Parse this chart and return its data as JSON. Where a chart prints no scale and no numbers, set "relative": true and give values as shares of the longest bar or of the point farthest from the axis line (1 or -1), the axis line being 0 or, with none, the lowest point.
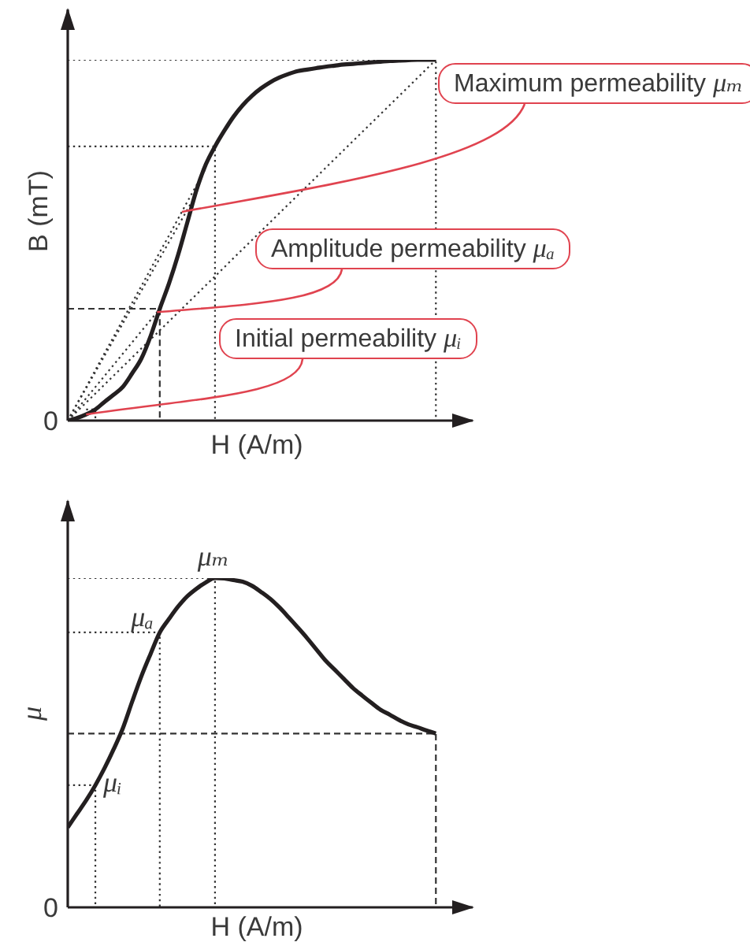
{
  "chart_data": [
    {
      "type": "line",
      "xlabel": "H (A/m)",
      "ylabel": "B (mT)",
      "relative": true,
      "marker": "none",
      "categories": [
        null,
        null,
        null,
        null,
        null,
        null,
        null,
        null,
        null,
        null,
        null,
        null,
        null,
        null,
        null,
        null,
        null,
        null,
        null,
        null,
        null,
        null,
        null,
        null,
        null,
        null,
        null,
        null,
        null,
        null,
        null,
        null,
        null,
        null,
        null,
        null,
        null,
        null,
        null,
        null,
        null,
        null,
        null,
        null,
        null
      ],
      "series": [
        {
          "type": "step",
          "color": "#333333",
          "line_style": "dotted",
          "values": [
            1,
            1,
            1,
            1,
            1,
            1,
            1,
            1,
            1,
            1,
            1,
            1,
            1,
            1,
            1,
            1,
            1,
            1,
            1,
            1,
            1,
            1,
            1,
            1,
            1,
            1,
            1,
            1,
            1,
            1,
            1,
            1,
            1,
            1,
            1,
            1,
            1,
            1,
            1,
            1,
            0,
            null,
            null,
            null,
            null
          ]
        },
        {
          "type": "step",
          "color": "#333333",
          "line_style": "dotted",
          "values": [
            0.76,
            0.76,
            0.76,
            0.76,
            0.76,
            0.76,
            0.76,
            0.76,
            0.76,
            0.76,
            0.76,
            0.76,
            0.76,
            0.76,
            0.76,
            0.76,
            0,
            null,
            null,
            null,
            null,
            null,
            null,
            null,
            null,
            null,
            null,
            null,
            null,
            null,
            null,
            null,
            null,
            null,
            null,
            null,
            null,
            null,
            null,
            null,
            null,
            null,
            null,
            null,
            null
          ]
        },
        {
          "type": "step",
          "color": "#333333",
          "line_style": "dashed",
          "values": [
            0.31,
            0.31,
            0.31,
            0.31,
            0.31,
            0.31,
            0.31,
            0.31,
            0.31,
            0.31,
            0,
            null,
            null,
            null,
            null,
            null,
            null,
            null,
            null,
            null,
            null,
            null,
            null,
            null,
            null,
            null,
            null,
            null,
            null,
            null,
            null,
            null,
            null,
            null,
            null,
            null,
            null,
            null,
            null,
            null,
            null,
            null,
            null,
            null,
            null
          ]
        },
        {
          "type": "step",
          "color": "#333333",
          "line_style": "dotted",
          "values": [
            null,
            null,
            0.031,
            0,
            null,
            null,
            null,
            null,
            null,
            null,
            null,
            null,
            null,
            null,
            null,
            null,
            null,
            null,
            null,
            null,
            null,
            null,
            null,
            null,
            null,
            null,
            null,
            null,
            null,
            null,
            null,
            null,
            null,
            null,
            null,
            null,
            null,
            null,
            null,
            null,
            null,
            null,
            null,
            null,
            null
          ]
        },
        {
          "color": "#333333",
          "line_style": "dotted",
          "values": [
            0,
            0.025,
            0.05,
            0.075,
            0.1,
            0.125,
            0.15,
            0.175,
            0.2,
            0.225,
            0.25,
            0.275,
            0.3,
            0.325,
            0.35,
            0.375,
            0.4,
            0.425,
            0.45,
            0.475,
            0.5,
            0.525,
            0.55,
            0.575,
            0.6,
            0.625,
            0.65,
            0.675,
            0.7,
            0.725,
            0.75,
            0.775,
            0.8,
            0.825,
            0.85,
            0.875,
            0.9,
            0.925,
            0.95,
            0.975,
            1,
            null,
            null,
            null,
            null
          ]
        },
        {
          "color": "#333333",
          "line_style": "dotted",
          "values": [
            0,
            0.047,
            0.093,
            0.14,
            0.187,
            0.233,
            0.28,
            0.327,
            0.373,
            0.42,
            0.467,
            0.513,
            0.56,
            0.607,
            0.653,
            0.7,
            null,
            null,
            null,
            null,
            null,
            null,
            null,
            null,
            null,
            null,
            null,
            null,
            null,
            null,
            null,
            null,
            null,
            null,
            null,
            null,
            null,
            null,
            null,
            null,
            null,
            null,
            null,
            null,
            null
          ]
        },
        {
          "color": "#333333",
          "line_style": "dotted",
          "values": [
            0,
            0.045,
            0.09,
            0.135,
            0.18,
            0.225,
            0.27,
            0.315,
            0.36,
            0.405,
            0.45,
            0.495,
            0.54,
            0.585,
            0.63,
            null,
            null,
            null,
            null,
            null,
            null,
            null,
            null,
            null,
            null,
            null,
            null,
            null,
            null,
            null,
            null,
            null,
            null,
            null,
            null,
            null,
            null,
            null,
            null,
            null,
            null,
            null,
            null,
            null,
            null
          ]
        },
        {
          "color": "#333333",
          "line_style": "dotted",
          "values": [
            0,
            0.031,
            0.062,
            0.093,
            0.124,
            0.155,
            0.186,
            0.217,
            0.248,
            0.279,
            0.31,
            null,
            null,
            null,
            null,
            null,
            null,
            null,
            null,
            null,
            null,
            null,
            null,
            null,
            null,
            null,
            null,
            null,
            null,
            null,
            null,
            null,
            null,
            null,
            null,
            null,
            null,
            null,
            null,
            null,
            null,
            null,
            null,
            null,
            null
          ]
        },
        {
          "color": "#231f20",
          "values": [
            0,
            0.007,
            0.017,
            0.031,
            0.052,
            0.072,
            0.094,
            0.131,
            0.172,
            0.234,
            0.31,
            0.38,
            0.46,
            0.55,
            0.64,
            0.71,
            0.76,
            0.803,
            0.842,
            0.874,
            0.9,
            0.921,
            0.938,
            0.951,
            0.961,
            0.969,
            0.973,
            0.977,
            0.981,
            0.984,
            0.987,
            0.989,
            0.991,
            0.993,
            0.995,
            0.997,
            0.998,
            0.999,
            1,
            1,
            1,
            null,
            null,
            null,
            null
          ]
        }
      ],
      "annotations": [
        "0",
        "Maximum permeability μₘ",
        "Amplitude permeability μₐ",
        "Initial permeability μᵢ"
      ]
    },
    {
      "type": "line",
      "xlabel": "H (A/m)",
      "ylabel": "μ",
      "relative": true,
      "marker": "none",
      "categories": [
        null,
        null,
        null,
        null,
        null,
        null,
        null,
        null,
        null,
        null,
        null,
        null,
        null,
        null,
        null,
        null,
        null,
        null,
        null,
        null,
        null,
        null,
        null,
        null,
        null,
        null,
        null,
        null,
        null,
        null,
        null,
        null,
        null,
        null,
        null,
        null,
        null,
        null,
        null,
        null,
        null,
        null,
        null,
        null,
        null
      ],
      "series": [
        {
          "type": "step",
          "color": "#333333",
          "line_style": "dotted",
          "values": [
            0.371,
            0.371,
            0.371,
            0,
            null,
            null,
            null,
            null,
            null,
            null,
            null,
            null,
            null,
            null,
            null,
            null,
            null,
            null,
            null,
            null,
            null,
            null,
            null,
            null,
            null,
            null,
            null,
            null,
            null,
            null,
            null,
            null,
            null,
            null,
            null,
            null,
            null,
            null,
            null,
            null,
            null,
            null,
            null,
            null,
            null
          ]
        },
        {
          "type": "step",
          "color": "#333333",
          "line_style": "dotted",
          "values": [
            0.835,
            0.835,
            0.835,
            0.835,
            0.835,
            0.835,
            0.835,
            0.835,
            0.835,
            0.835,
            0,
            null,
            null,
            null,
            null,
            null,
            null,
            null,
            null,
            null,
            null,
            null,
            null,
            null,
            null,
            null,
            null,
            null,
            null,
            null,
            null,
            null,
            null,
            null,
            null,
            null,
            null,
            null,
            null,
            null,
            null,
            null,
            null,
            null,
            null
          ]
        },
        {
          "type": "step",
          "color": "#333333",
          "line_style": "dotted",
          "values": [
            1,
            1,
            1,
            1,
            1,
            1,
            1,
            1,
            1,
            1,
            1,
            1,
            1,
            1,
            1,
            1,
            0,
            null,
            null,
            null,
            null,
            null,
            null,
            null,
            null,
            null,
            null,
            null,
            null,
            null,
            null,
            null,
            null,
            null,
            null,
            null,
            null,
            null,
            null,
            null,
            null,
            null,
            null,
            null,
            null
          ]
        },
        {
          "type": "step",
          "color": "#333333",
          "line_style": "dashed",
          "values": [
            0.528,
            0.528,
            0.528,
            0.528,
            0.528,
            0.528,
            0.528,
            0.528,
            0.528,
            0.528,
            0.528,
            0.528,
            0.528,
            0.528,
            0.528,
            0.528,
            0.528,
            0.528,
            0.528,
            0.528,
            0.528,
            0.528,
            0.528,
            0.528,
            0.528,
            0.528,
            0.528,
            0.528,
            0.528,
            0.528,
            0.528,
            0.528,
            0.528,
            0.528,
            0.528,
            0.528,
            0.528,
            0.528,
            0.528,
            0.528,
            0,
            null,
            null,
            null,
            null
          ]
        },
        {
          "color": "#231f20",
          "values": [
            0.243,
            0.284,
            0.325,
            0.371,
            0.423,
            0.481,
            0.545,
            0.625,
            0.702,
            0.77,
            0.835,
            0.876,
            0.914,
            0.945,
            0.968,
            0.987,
            1,
            0.999,
            0.994,
            0.989,
            0.977,
            0.958,
            0.937,
            0.911,
            0.881,
            0.85,
            0.818,
            0.784,
            0.75,
            0.722,
            0.694,
            0.666,
            0.643,
            0.621,
            0.6,
            0.585,
            0.569,
            0.556,
            0.547,
            0.537,
            0.528,
            null,
            null,
            null,
            null
          ]
        }
      ],
      "annotations": [
        "0",
        "μᵢ",
        "μₐ",
        "μₘ"
      ]
    }
  ]
}
